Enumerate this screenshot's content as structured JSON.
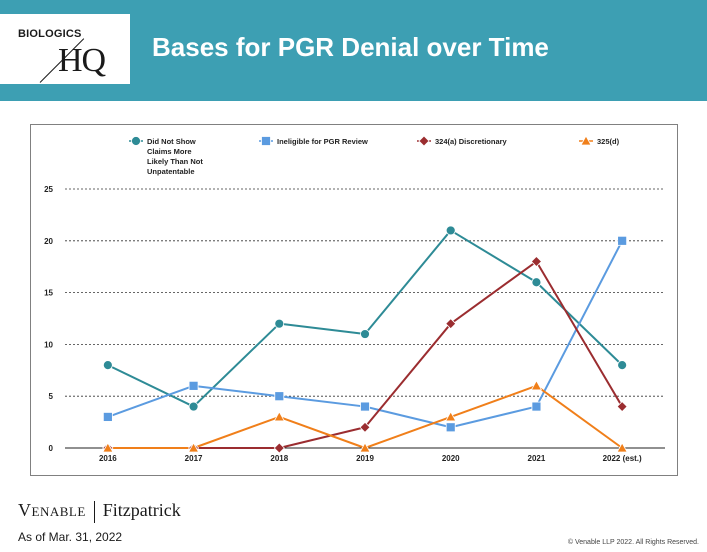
{
  "header": {
    "logo_top": "BIOLOGICS",
    "logo_main": "HQ",
    "title": "Bases for PGR Denial over Time",
    "background_color": "#3d9fb3"
  },
  "footer": {
    "brand_left": "Venable",
    "brand_right": "Fitzpatrick",
    "as_of": "As of Mar. 31, 2022",
    "copyright": "© Venable LLP 2022. All Rights Reserved."
  },
  "chart_data": {
    "type": "line",
    "title": "",
    "xlabel": "",
    "ylabel": "",
    "categories": [
      "2016",
      "2017",
      "2018",
      "2019",
      "2020",
      "2021",
      "2022 (est.)"
    ],
    "ylim": [
      0,
      25
    ],
    "yticks": [
      0,
      5,
      10,
      15,
      20,
      25
    ],
    "grid": "horizontal dashed",
    "legend_position": "top",
    "series": [
      {
        "name": "Did Not Show Claims More Likely Than Not Unpatentable",
        "legend_lines": [
          "Did Not Show",
          "Claims More",
          "Likely Than Not",
          "Unpatentable"
        ],
        "values": [
          8,
          4,
          12,
          11,
          21,
          16,
          8
        ],
        "color": "#2e8b96",
        "marker": "circle"
      },
      {
        "name": "Ineligible for PGR Review",
        "legend_lines": [
          "Ineligible for PGR Review"
        ],
        "values": [
          3,
          6,
          5,
          4,
          2,
          4,
          20
        ],
        "color": "#5b9be0",
        "marker": "square"
      },
      {
        "name": "324(a) Discretionary",
        "legend_lines": [
          "324(a) Discretionary"
        ],
        "values": [
          0,
          0,
          0,
          2,
          12,
          18,
          4
        ],
        "color": "#9b2d30",
        "marker": "diamond"
      },
      {
        "name": "325(d)",
        "legend_lines": [
          "325(d)"
        ],
        "values": [
          0,
          0,
          3,
          0,
          3,
          6,
          0
        ],
        "color": "#f07f1a",
        "marker": "triangle"
      }
    ]
  }
}
